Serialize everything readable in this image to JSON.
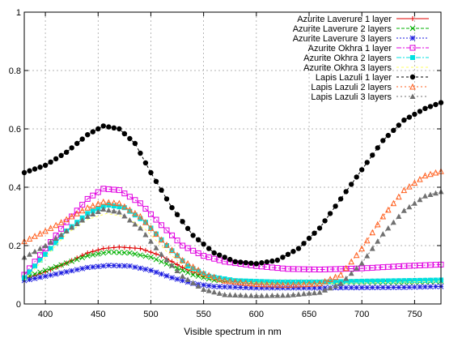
{
  "chart_data": {
    "type": "line",
    "title": "",
    "xlabel": "Visible spectrum in nm",
    "ylabel": "",
    "xlim": [
      380,
      775
    ],
    "ylim": [
      0,
      1
    ],
    "x_ticks": [
      400,
      450,
      500,
      550,
      600,
      650,
      700,
      750
    ],
    "y_ticks": [
      0,
      0.2,
      0.4,
      0.6,
      0.8,
      1
    ],
    "x_tick_labels": [
      "400",
      "450",
      "500",
      "550",
      "600",
      "650",
      "700",
      "750"
    ],
    "y_tick_labels": [
      "0",
      "0.2",
      "0.4",
      "0.6",
      "0.8",
      "1"
    ],
    "grid": true,
    "legend_position": "top-right",
    "series": [
      {
        "name": "Azurite Laverure 1 layer",
        "color": "#e00000",
        "marker": "plus",
        "dash": "",
        "points": [
          [
            380,
            0.085
          ],
          [
            400,
            0.11
          ],
          [
            420,
            0.14
          ],
          [
            440,
            0.175
          ],
          [
            455,
            0.19
          ],
          [
            470,
            0.195
          ],
          [
            490,
            0.19
          ],
          [
            510,
            0.165
          ],
          [
            530,
            0.125
          ],
          [
            550,
            0.095
          ],
          [
            570,
            0.078
          ],
          [
            600,
            0.072
          ],
          [
            630,
            0.072
          ],
          [
            660,
            0.075
          ],
          [
            700,
            0.078
          ],
          [
            740,
            0.08
          ],
          [
            775,
            0.082
          ]
        ]
      },
      {
        "name": "Azurite Laverure 2 layers",
        "color": "#00b000",
        "marker": "x",
        "dash": "4 2",
        "points": [
          [
            380,
            0.09
          ],
          [
            400,
            0.115
          ],
          [
            420,
            0.14
          ],
          [
            440,
            0.165
          ],
          [
            460,
            0.178
          ],
          [
            480,
            0.175
          ],
          [
            500,
            0.16
          ],
          [
            520,
            0.13
          ],
          [
            540,
            0.1
          ],
          [
            560,
            0.082
          ],
          [
            600,
            0.075
          ],
          [
            650,
            0.075
          ],
          [
            700,
            0.075
          ],
          [
            740,
            0.075
          ],
          [
            775,
            0.078
          ]
        ]
      },
      {
        "name": "Azurite Laverure 3 layers",
        "color": "#1b1be0",
        "marker": "star",
        "dash": "2 2",
        "points": [
          [
            380,
            0.08
          ],
          [
            400,
            0.095
          ],
          [
            420,
            0.11
          ],
          [
            440,
            0.125
          ],
          [
            460,
            0.132
          ],
          [
            480,
            0.13
          ],
          [
            500,
            0.115
          ],
          [
            520,
            0.09
          ],
          [
            540,
            0.07
          ],
          [
            560,
            0.06
          ],
          [
            600,
            0.055
          ],
          [
            650,
            0.055
          ],
          [
            700,
            0.056
          ],
          [
            740,
            0.057
          ],
          [
            775,
            0.06
          ]
        ]
      },
      {
        "name": "Azurite Okhra 1 layer",
        "color": "#e000e0",
        "marker": "square-open",
        "dash": "6 2 2 2",
        "points": [
          [
            380,
            0.1
          ],
          [
            400,
            0.19
          ],
          [
            420,
            0.28
          ],
          [
            440,
            0.36
          ],
          [
            455,
            0.395
          ],
          [
            470,
            0.39
          ],
          [
            490,
            0.345
          ],
          [
            510,
            0.27
          ],
          [
            530,
            0.2
          ],
          [
            550,
            0.165
          ],
          [
            570,
            0.145
          ],
          [
            600,
            0.13
          ],
          [
            630,
            0.12
          ],
          [
            660,
            0.118
          ],
          [
            700,
            0.122
          ],
          [
            740,
            0.13
          ],
          [
            775,
            0.135
          ]
        ]
      },
      {
        "name": "Azurite Okhra 2 layers",
        "color": "#00e0e0",
        "marker": "square-filled",
        "dash": "6 2 2 2",
        "points": [
          [
            380,
            0.09
          ],
          [
            400,
            0.17
          ],
          [
            420,
            0.25
          ],
          [
            440,
            0.31
          ],
          [
            458,
            0.34
          ],
          [
            475,
            0.33
          ],
          [
            495,
            0.28
          ],
          [
            515,
            0.2
          ],
          [
            535,
            0.13
          ],
          [
            555,
            0.095
          ],
          [
            580,
            0.08
          ],
          [
            620,
            0.075
          ],
          [
            660,
            0.075
          ],
          [
            700,
            0.078
          ],
          [
            740,
            0.08
          ],
          [
            775,
            0.082
          ]
        ]
      },
      {
        "name": "Azurite Okhra 3 layers",
        "color": "#ffff60",
        "marker": "none",
        "dash": "3 3",
        "points": [
          [
            380,
            0.08
          ],
          [
            400,
            0.16
          ],
          [
            420,
            0.24
          ],
          [
            440,
            0.29
          ],
          [
            458,
            0.31
          ],
          [
            475,
            0.3
          ],
          [
            495,
            0.255
          ],
          [
            515,
            0.18
          ],
          [
            535,
            0.12
          ],
          [
            555,
            0.088
          ],
          [
            580,
            0.075
          ],
          [
            620,
            0.07
          ],
          [
            660,
            0.07
          ],
          [
            700,
            0.072
          ],
          [
            740,
            0.075
          ],
          [
            775,
            0.078
          ]
        ]
      },
      {
        "name": "Lapis Lazuli 1 layer",
        "color": "#000000",
        "marker": "circle-filled",
        "dash": "3 3",
        "points": [
          [
            380,
            0.45
          ],
          [
            400,
            0.475
          ],
          [
            420,
            0.52
          ],
          [
            440,
            0.58
          ],
          [
            455,
            0.61
          ],
          [
            470,
            0.6
          ],
          [
            485,
            0.55
          ],
          [
            500,
            0.45
          ],
          [
            520,
            0.33
          ],
          [
            540,
            0.235
          ],
          [
            560,
            0.175
          ],
          [
            580,
            0.145
          ],
          [
            600,
            0.138
          ],
          [
            620,
            0.15
          ],
          [
            640,
            0.19
          ],
          [
            660,
            0.26
          ],
          [
            680,
            0.36
          ],
          [
            700,
            0.46
          ],
          [
            720,
            0.56
          ],
          [
            740,
            0.63
          ],
          [
            760,
            0.67
          ],
          [
            775,
            0.69
          ]
        ]
      },
      {
        "name": "Lapis Lazuli 2 layers",
        "color": "#ff6020",
        "marker": "triangle-open",
        "dash": "2 3",
        "points": [
          [
            380,
            0.215
          ],
          [
            400,
            0.25
          ],
          [
            420,
            0.29
          ],
          [
            440,
            0.33
          ],
          [
            455,
            0.35
          ],
          [
            470,
            0.345
          ],
          [
            490,
            0.3
          ],
          [
            510,
            0.22
          ],
          [
            530,
            0.15
          ],
          [
            550,
            0.105
          ],
          [
            570,
            0.08
          ],
          [
            600,
            0.068
          ],
          [
            630,
            0.065
          ],
          [
            660,
            0.07
          ],
          [
            680,
            0.1
          ],
          [
            700,
            0.19
          ],
          [
            720,
            0.3
          ],
          [
            740,
            0.39
          ],
          [
            760,
            0.44
          ],
          [
            775,
            0.455
          ]
        ]
      },
      {
        "name": "Lapis Lazuli 3 layers",
        "color": "#707070",
        "marker": "triangle-filled",
        "dash": "2 3",
        "points": [
          [
            380,
            0.16
          ],
          [
            400,
            0.2
          ],
          [
            420,
            0.25
          ],
          [
            440,
            0.3
          ],
          [
            455,
            0.325
          ],
          [
            470,
            0.315
          ],
          [
            490,
            0.26
          ],
          [
            510,
            0.17
          ],
          [
            530,
            0.095
          ],
          [
            550,
            0.05
          ],
          [
            570,
            0.032
          ],
          [
            600,
            0.028
          ],
          [
            630,
            0.03
          ],
          [
            660,
            0.04
          ],
          [
            680,
            0.07
          ],
          [
            700,
            0.14
          ],
          [
            720,
            0.24
          ],
          [
            740,
            0.32
          ],
          [
            760,
            0.37
          ],
          [
            775,
            0.385
          ]
        ]
      }
    ]
  }
}
